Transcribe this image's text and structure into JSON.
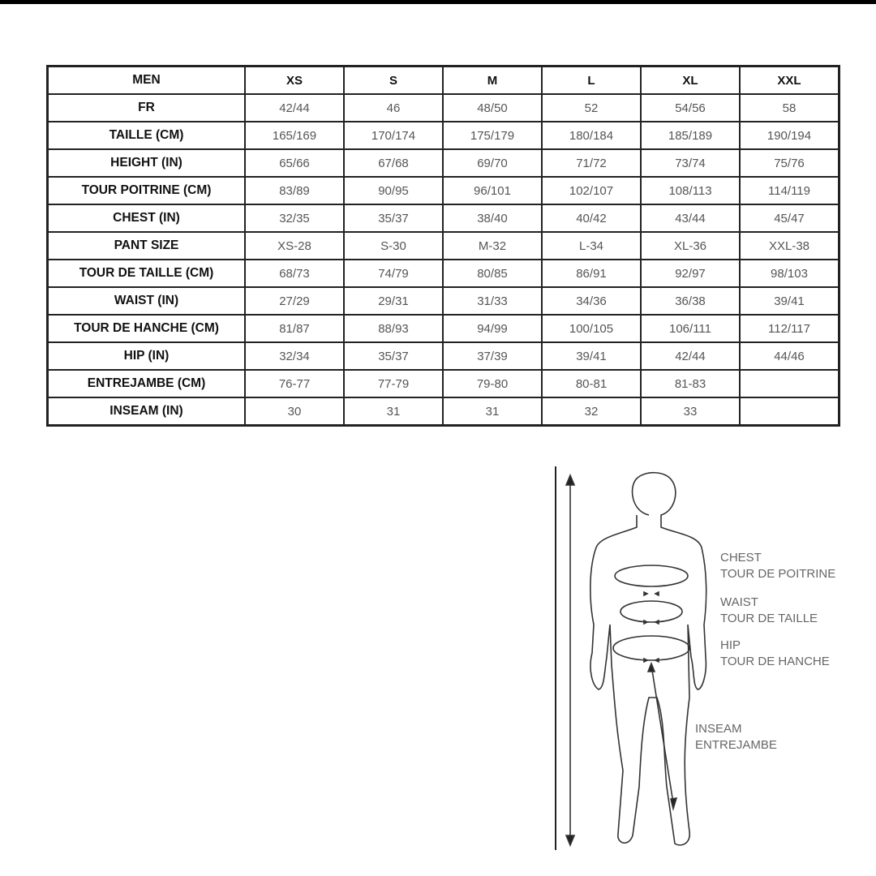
{
  "table": {
    "header": [
      "MEN",
      "XS",
      "S",
      "M",
      "L",
      "XL",
      "XXL"
    ],
    "rows": [
      {
        "label": "FR",
        "values": [
          "42/44",
          "46",
          "48/50",
          "52",
          "54/56",
          "58"
        ]
      },
      {
        "label": "TAILLE (CM)",
        "values": [
          "165/169",
          "170/174",
          "175/179",
          "180/184",
          "185/189",
          "190/194"
        ]
      },
      {
        "label": "HEIGHT (IN)",
        "values": [
          "65/66",
          "67/68",
          "69/70",
          "71/72",
          "73/74",
          "75/76"
        ]
      },
      {
        "label": "TOUR POITRINE (CM)",
        "values": [
          "83/89",
          "90/95",
          "96/101",
          "102/107",
          "108/113",
          "114/119"
        ]
      },
      {
        "label": "CHEST (IN)",
        "values": [
          "32/35",
          "35/37",
          "38/40",
          "40/42",
          "43/44",
          "45/47"
        ]
      },
      {
        "label": "PANT SIZE",
        "values": [
          "XS-28",
          "S-30",
          "M-32",
          "L-34",
          "XL-36",
          "XXL-38"
        ]
      },
      {
        "label": "TOUR DE TAILLE (CM)",
        "values": [
          "68/73",
          "74/79",
          "80/85",
          "86/91",
          "92/97",
          "98/103"
        ]
      },
      {
        "label": "WAIST (IN)",
        "values": [
          "27/29",
          "29/31",
          "31/33",
          "34/36",
          "36/38",
          "39/41"
        ]
      },
      {
        "label": "TOUR DE HANCHE (CM)",
        "values": [
          "81/87",
          "88/93",
          "94/99",
          "100/105",
          "106/111",
          "112/117"
        ]
      },
      {
        "label": "HIP (IN)",
        "values": [
          "32/34",
          "35/37",
          "37/39",
          "39/41",
          "42/44",
          "44/46"
        ]
      },
      {
        "label": "ENTREJAMBE (CM)",
        "values": [
          "76-77",
          "77-79",
          "79-80",
          "80-81",
          "81-83",
          ""
        ]
      },
      {
        "label": "INSEAM (IN)",
        "values": [
          "30",
          "31",
          "31",
          "32",
          "33",
          ""
        ]
      }
    ]
  },
  "figure": {
    "chest": [
      "CHEST",
      "TOUR DE POITRINE"
    ],
    "waist": [
      "WAIST",
      "TOUR DE TAILLE"
    ],
    "hip": [
      "HIP",
      "TOUR DE HANCHE"
    ],
    "inseam": [
      "INSEAM",
      "ENTREJAMBE"
    ]
  }
}
